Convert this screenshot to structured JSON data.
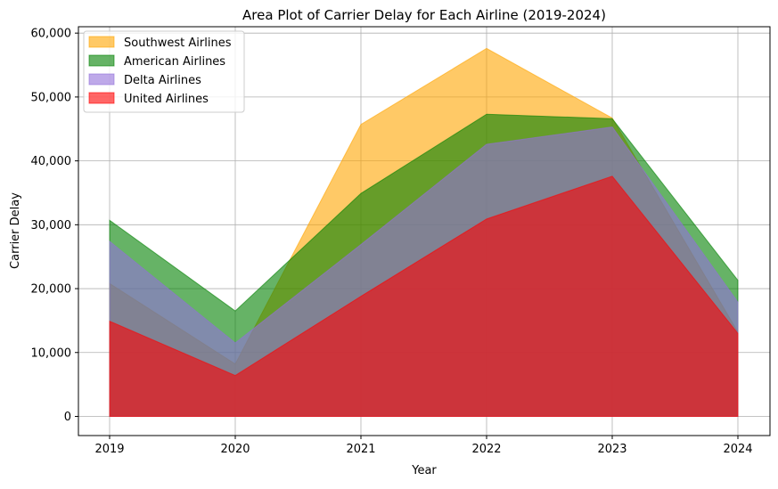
{
  "chart_data": {
    "type": "area",
    "title": "Area Plot of Carrier Delay for Each Airline (2019-2024)",
    "xlabel": "Year",
    "ylabel": "Carrier Delay",
    "categories": [
      "2019",
      "2020",
      "2021",
      "2022",
      "2023",
      "2024"
    ],
    "ylim": [
      -3000,
      61000
    ],
    "yticks": [
      0,
      10000,
      20000,
      30000,
      40000,
      50000,
      60000
    ],
    "ytick_labels": [
      "0",
      "10,000",
      "20,000",
      "30,000",
      "40,000",
      "50,000",
      "60,000"
    ],
    "grid": true,
    "legend_position": "top-left",
    "stacked": false,
    "series": [
      {
        "name": "Southwest Airlines",
        "color": "#ffa500",
        "alpha": 0.6,
        "values": [
          20800,
          8200,
          45700,
          57600,
          46700,
          13200
        ]
      },
      {
        "name": "American Airlines",
        "color": "#008000",
        "alpha": 0.6,
        "values": [
          30700,
          16500,
          34900,
          47300,
          46600,
          21300
        ]
      },
      {
        "name": "Delta Airlines",
        "color": "#9370db",
        "alpha": 0.6,
        "values": [
          27400,
          11500,
          26900,
          42600,
          45300,
          17900
        ]
      },
      {
        "name": "United Airlines",
        "color": "#ff0000",
        "alpha": 0.6,
        "values": [
          14900,
          6400,
          18800,
          30900,
          37600,
          13000
        ]
      }
    ]
  }
}
